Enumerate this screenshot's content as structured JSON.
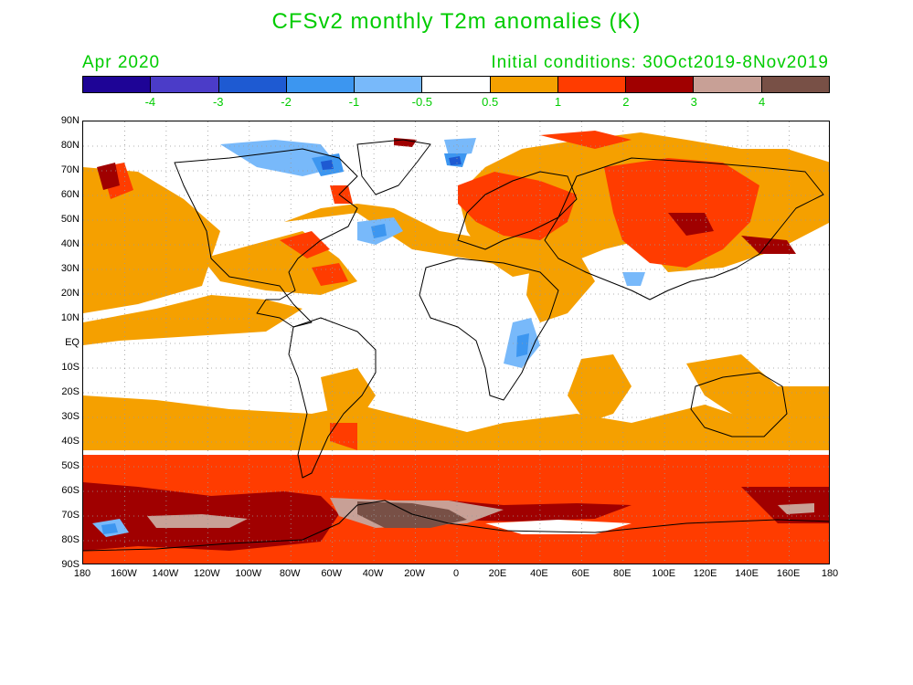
{
  "title": "CFSv2 monthly T2m anomalies (K)",
  "valid_month": "Apr 2020",
  "initial_conditions": "Initial conditions: 30Oct2019-8Nov2019",
  "text_color": "#00cc00",
  "colorbar": {
    "colors": [
      "#1e0496",
      "#4b3cc8",
      "#1e5ad2",
      "#3c96f0",
      "#78b9fa",
      "#ffffff",
      "#f5a000",
      "#ff3c00",
      "#a00000",
      "#c8a096",
      "#785046"
    ],
    "labels": [
      "-4",
      "-3",
      "-2",
      "-1",
      "-0.5",
      "0.5",
      "1",
      "2",
      "3",
      "4"
    ]
  },
  "lat_labels": [
    "90N",
    "80N",
    "70N",
    "60N",
    "50N",
    "40N",
    "30N",
    "20N",
    "10N",
    "EQ",
    "10S",
    "20S",
    "30S",
    "40S",
    "50S",
    "60S",
    "70S",
    "80S",
    "90S"
  ],
  "lon_labels": [
    "180",
    "160W",
    "140W",
    "120W",
    "100W",
    "80W",
    "60W",
    "40W",
    "20W",
    "0",
    "20E",
    "40E",
    "60E",
    "80E",
    "100E",
    "120E",
    "140E",
    "160E",
    "180"
  ]
}
